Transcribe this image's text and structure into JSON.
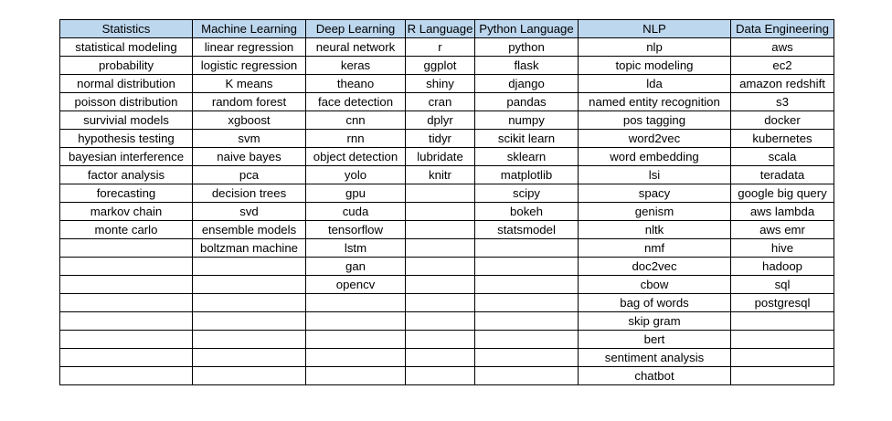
{
  "table": {
    "headers": [
      "Statistics",
      "Machine Learning",
      "Deep Learning",
      "R Language",
      "Python Language",
      "NLP",
      "Data Engineering"
    ],
    "rows": [
      [
        "statistical modeling",
        "linear regression",
        "neural network",
        "r",
        "python",
        "nlp",
        "aws"
      ],
      [
        "probability",
        "logistic regression",
        "keras",
        "ggplot",
        "flask",
        "topic modeling",
        "ec2"
      ],
      [
        "normal distribution",
        "K means",
        "theano",
        "shiny",
        "django",
        "lda",
        "amazon redshift"
      ],
      [
        "poisson distribution",
        "random forest",
        "face detection",
        "cran",
        "pandas",
        "named entity recognition",
        "s3"
      ],
      [
        "survivial models",
        "xgboost",
        "cnn",
        "dplyr",
        "numpy",
        "pos tagging",
        "docker"
      ],
      [
        "hypothesis testing",
        "svm",
        "rnn",
        "tidyr",
        "scikit learn",
        "word2vec",
        "kubernetes"
      ],
      [
        "bayesian interference",
        "naive bayes",
        "object detection",
        "lubridate",
        "sklearn",
        "word embedding",
        "scala"
      ],
      [
        "factor analysis",
        "pca",
        "yolo",
        "knitr",
        "matplotlib",
        "lsi",
        "teradata"
      ],
      [
        "forecasting",
        "decision trees",
        "gpu",
        "",
        "scipy",
        "spacy",
        "google big query"
      ],
      [
        "markov chain",
        "svd",
        "cuda",
        "",
        "bokeh",
        "genism",
        "aws lambda"
      ],
      [
        "monte carlo",
        "ensemble models",
        "tensorflow",
        "",
        "statsmodel",
        "nltk",
        "aws emr"
      ],
      [
        "",
        "boltzman machine",
        "lstm",
        "",
        "",
        "nmf",
        "hive"
      ],
      [
        "",
        "",
        "gan",
        "",
        "",
        "doc2vec",
        "hadoop"
      ],
      [
        "",
        "",
        "opencv",
        "",
        "",
        "cbow",
        "sql"
      ],
      [
        "",
        "",
        "",
        "",
        "",
        "bag of words",
        "postgresql"
      ],
      [
        "",
        "",
        "",
        "",
        "",
        "skip gram",
        ""
      ],
      [
        "",
        "",
        "",
        "",
        "",
        "bert",
        ""
      ],
      [
        "",
        "",
        "",
        "",
        "",
        "sentiment analysis",
        ""
      ],
      [
        "",
        "",
        "",
        "",
        "",
        "chatbot",
        ""
      ]
    ]
  },
  "colors": {
    "header_fill": "#bdd7ee",
    "grid": "#000000",
    "background": "#ffffff"
  }
}
